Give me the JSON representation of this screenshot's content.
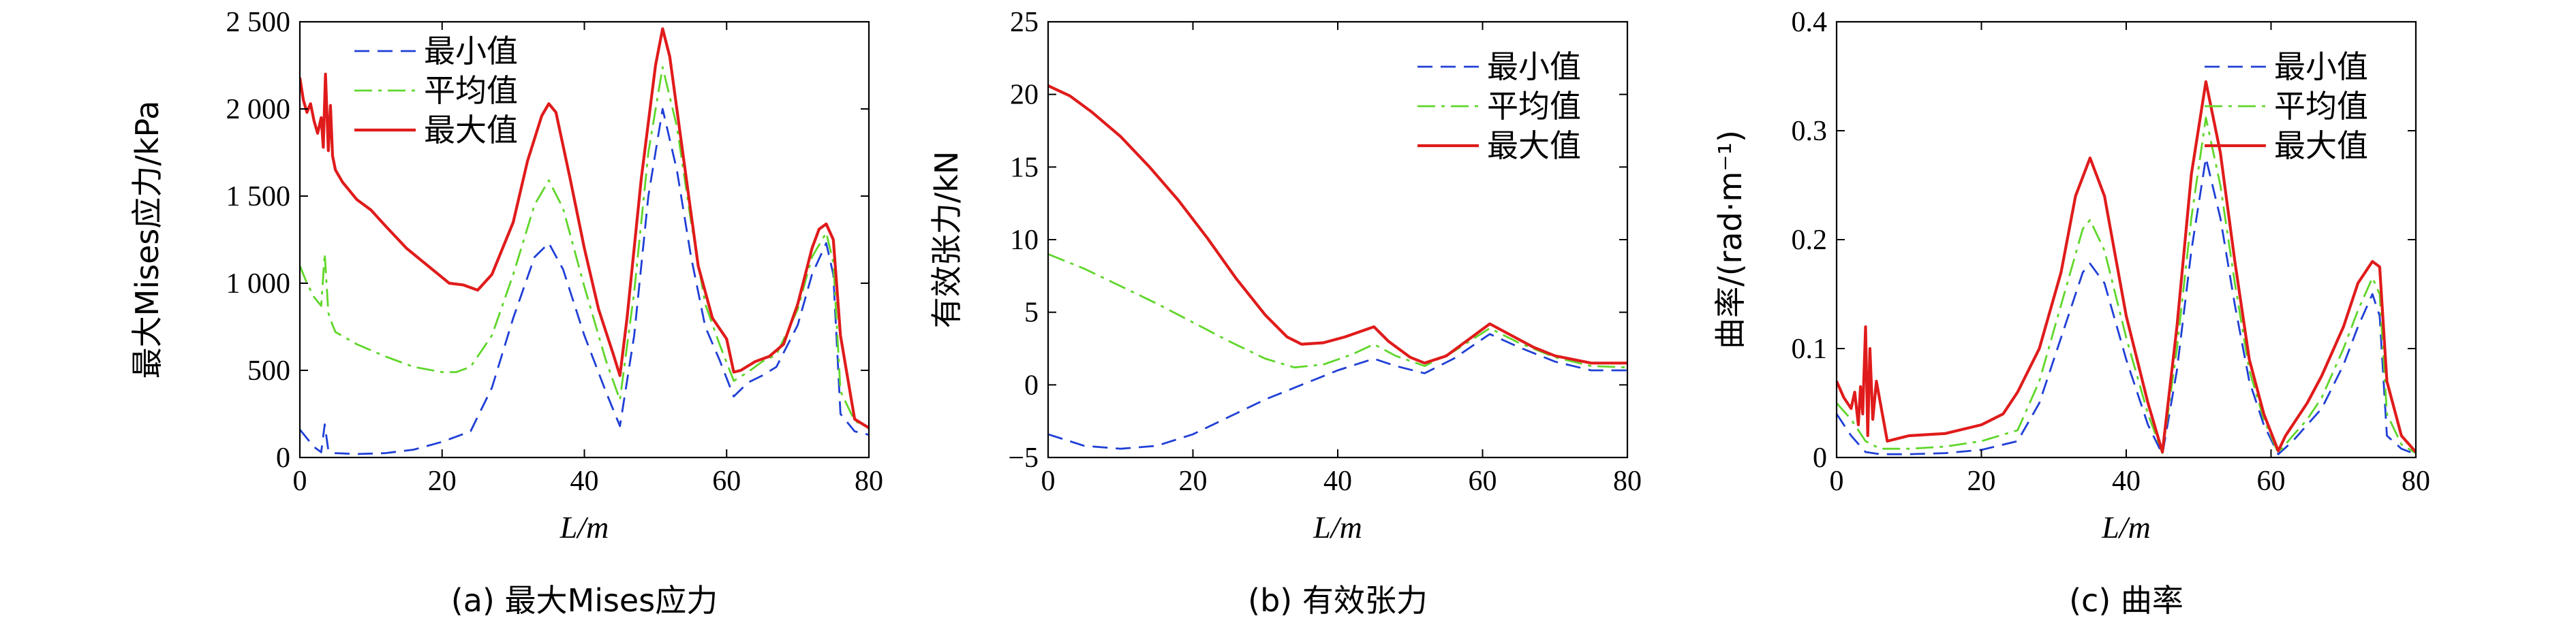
{
  "colors": {
    "min": "#1f3fd6",
    "avg": "#5fd62a",
    "max": "#e01b1b",
    "axis": "#000000"
  },
  "legend_labels": [
    "最小值",
    "平均值",
    "最大值"
  ],
  "chart_data": [
    {
      "type": "line",
      "caption": "(a) 最大Mises应力",
      "xlabel": "L/m",
      "ylabel": "最大Mises应力/kPa",
      "xlim": [
        0,
        80
      ],
      "ylim": [
        0,
        2500
      ],
      "xticks": [
        0,
        20,
        40,
        60,
        80
      ],
      "xtick_labels": [
        "0",
        "20",
        "40",
        "60",
        "80"
      ],
      "yticks": [
        0,
        500,
        1000,
        1500,
        2000,
        2500
      ],
      "ytick_labels": [
        "0",
        "500",
        "1 000",
        "1 500",
        "2 000",
        "2 500"
      ],
      "legend_position": "top-left",
      "series": [
        {
          "name": "最小值",
          "style": "dashed",
          "color": "#1f3fd6",
          "x": [
            0,
            1,
            2,
            3,
            3.5,
            4,
            4.5,
            5,
            8,
            12,
            16,
            20,
            24,
            27,
            30,
            33,
            35,
            37,
            40,
            43,
            45,
            47,
            49,
            51,
            53,
            55,
            57,
            59,
            61,
            63,
            65,
            67,
            70,
            72,
            74,
            75,
            76,
            78,
            80
          ],
          "y": [
            160,
            110,
            60,
            30,
            190,
            40,
            30,
            25,
            20,
            25,
            45,
            90,
            150,
            400,
            800,
            1150,
            1230,
            1080,
            700,
            380,
            180,
            700,
            1500,
            2000,
            1650,
            1150,
            750,
            560,
            350,
            430,
            470,
            520,
            760,
            1050,
            1230,
            1050,
            250,
            150,
            130
          ]
        },
        {
          "name": "平均值",
          "style": "dash-dot",
          "color": "#5fd62a",
          "x": [
            0,
            1,
            2,
            3,
            3.5,
            4,
            4.5,
            5,
            8,
            12,
            16,
            20,
            22,
            24,
            27,
            30,
            33,
            35,
            37,
            40,
            43,
            45,
            47,
            49,
            51,
            53,
            55,
            57,
            59,
            61,
            63,
            65,
            67,
            70,
            72,
            74,
            75,
            76,
            78,
            80
          ],
          "y": [
            1100,
            1000,
            920,
            870,
            1170,
            830,
            770,
            720,
            650,
            580,
            520,
            490,
            490,
            520,
            700,
            1050,
            1450,
            1590,
            1430,
            980,
            560,
            330,
            950,
            1750,
            2240,
            1900,
            1350,
            880,
            650,
            440,
            490,
            550,
            590,
            850,
            1150,
            1290,
            1120,
            380,
            210,
            170
          ]
        },
        {
          "name": "最大值",
          "style": "solid",
          "color": "#e01b1b",
          "x": [
            0,
            0.5,
            1,
            1.5,
            2,
            2.5,
            3,
            3.3,
            3.6,
            4,
            4.3,
            4.6,
            5,
            6,
            8,
            10,
            12,
            15,
            18,
            21,
            23,
            25,
            27,
            30,
            32,
            34,
            35,
            36,
            38,
            40,
            42,
            44,
            45,
            46,
            48,
            50,
            51,
            52,
            54,
            56,
            58,
            60,
            61,
            62,
            64,
            66,
            68,
            70,
            72,
            73,
            74,
            75,
            76,
            78,
            80
          ],
          "y": [
            2180,
            2050,
            1980,
            2030,
            1930,
            1860,
            1950,
            1780,
            2200,
            1760,
            2020,
            1730,
            1650,
            1580,
            1480,
            1420,
            1330,
            1200,
            1100,
            1000,
            990,
            960,
            1050,
            1350,
            1700,
            1960,
            2030,
            1980,
            1600,
            1200,
            850,
            600,
            470,
            800,
            1600,
            2250,
            2460,
            2300,
            1700,
            1100,
            800,
            680,
            490,
            500,
            550,
            580,
            650,
            880,
            1200,
            1310,
            1340,
            1250,
            700,
            220,
            170
          ]
        }
      ]
    },
    {
      "type": "line",
      "caption": "(b) 有效张力",
      "xlabel": "L/m",
      "ylabel": "有效张力/kN",
      "xlim": [
        0,
        80
      ],
      "ylim": [
        -5,
        25
      ],
      "xticks": [
        0,
        20,
        40,
        60,
        80
      ],
      "xtick_labels": [
        "0",
        "20",
        "40",
        "60",
        "80"
      ],
      "yticks": [
        -5,
        0,
        5,
        10,
        15,
        20,
        25
      ],
      "ytick_labels": [
        "−5",
        "0",
        "5",
        "10",
        "15",
        "20",
        "25"
      ],
      "legend_position": "top-right",
      "series": [
        {
          "name": "最小值",
          "style": "dashed",
          "color": "#1f3fd6",
          "x": [
            0,
            5,
            10,
            15,
            20,
            25,
            30,
            35,
            40,
            45,
            48,
            52,
            56,
            61,
            65,
            70,
            75,
            80
          ],
          "y": [
            -3.4,
            -4.2,
            -4.4,
            -4.2,
            -3.4,
            -2.2,
            -1.0,
            0.0,
            1.0,
            1.8,
            1.3,
            0.8,
            1.8,
            3.5,
            2.6,
            1.6,
            1.0,
            1.0
          ]
        },
        {
          "name": "平均值",
          "style": "dash-dot",
          "color": "#5fd62a",
          "x": [
            0,
            5,
            10,
            15,
            20,
            25,
            30,
            34,
            38,
            42,
            45,
            48,
            52,
            56,
            61,
            65,
            70,
            75,
            80
          ],
          "y": [
            9.0,
            8.0,
            6.8,
            5.6,
            4.3,
            3.0,
            1.8,
            1.2,
            1.4,
            2.1,
            2.8,
            2.0,
            1.3,
            2.3,
            3.9,
            2.9,
            1.9,
            1.3,
            1.2
          ]
        },
        {
          "name": "最大值",
          "style": "solid",
          "color": "#e01b1b",
          "x": [
            0,
            3,
            6,
            10,
            14,
            18,
            22,
            26,
            30,
            33,
            35,
            38,
            41,
            45,
            47,
            50,
            52,
            55,
            58,
            61,
            64,
            67,
            70,
            75,
            80
          ],
          "y": [
            20.6,
            19.9,
            18.8,
            17.1,
            15.0,
            12.7,
            10.1,
            7.3,
            4.8,
            3.3,
            2.8,
            2.9,
            3.3,
            4.0,
            3.0,
            1.9,
            1.5,
            2.0,
            3.1,
            4.2,
            3.4,
            2.6,
            2.0,
            1.5,
            1.5
          ]
        }
      ]
    },
    {
      "type": "line",
      "caption": "(c) 曲率",
      "xlabel": "L/m",
      "ylabel": "曲率/(rad·m⁻¹)",
      "xlim": [
        0,
        80
      ],
      "ylim": [
        0,
        0.4
      ],
      "xticks": [
        0,
        20,
        40,
        60,
        80
      ],
      "xtick_labels": [
        "0",
        "20",
        "40",
        "60",
        "80"
      ],
      "yticks": [
        0,
        0.1,
        0.2,
        0.3,
        0.4
      ],
      "ytick_labels": [
        "0",
        "0.1",
        "0.2",
        "0.3",
        "0.4"
      ],
      "legend_position": "top-right",
      "series": [
        {
          "name": "最小值",
          "style": "dashed",
          "color": "#1f3fd6",
          "x": [
            0,
            2,
            4,
            6,
            10,
            15,
            20,
            25,
            28,
            31,
            34,
            35,
            37,
            40,
            43,
            45,
            47,
            49,
            51,
            53,
            55,
            57,
            59,
            61,
            63,
            65,
            67,
            70,
            72,
            74,
            75,
            76,
            78,
            80
          ],
          "y": [
            0.04,
            0.02,
            0.005,
            0.003,
            0.003,
            0.004,
            0.007,
            0.015,
            0.05,
            0.11,
            0.17,
            0.178,
            0.16,
            0.09,
            0.03,
            0.003,
            0.08,
            0.19,
            0.275,
            0.22,
            0.14,
            0.07,
            0.03,
            0.003,
            0.015,
            0.03,
            0.045,
            0.085,
            0.12,
            0.15,
            0.13,
            0.02,
            0.008,
            0.003
          ]
        },
        {
          "name": "平均值",
          "style": "dash-dot",
          "color": "#5fd62a",
          "x": [
            0,
            2,
            4,
            6,
            10,
            15,
            20,
            25,
            28,
            31,
            34,
            35,
            37,
            40,
            43,
            45,
            47,
            49,
            51,
            53,
            55,
            57,
            59,
            61,
            63,
            65,
            67,
            70,
            72,
            74,
            75,
            76,
            78,
            80
          ],
          "y": [
            0.05,
            0.035,
            0.015,
            0.008,
            0.008,
            0.01,
            0.015,
            0.025,
            0.07,
            0.14,
            0.21,
            0.218,
            0.19,
            0.11,
            0.04,
            0.004,
            0.1,
            0.22,
            0.312,
            0.25,
            0.16,
            0.08,
            0.035,
            0.004,
            0.02,
            0.035,
            0.055,
            0.1,
            0.135,
            0.165,
            0.15,
            0.04,
            0.012,
            0.004
          ]
        },
        {
          "name": "最大值",
          "style": "solid",
          "color": "#e01b1b",
          "x": [
            0,
            1,
            2,
            2.5,
            3,
            3.3,
            3.6,
            4,
            4.3,
            4.6,
            5,
            5.5,
            7,
            10,
            15,
            20,
            23,
            25,
            28,
            31,
            33,
            35,
            37,
            40,
            43,
            45,
            47,
            49,
            51,
            53,
            55,
            57,
            59,
            61,
            62,
            63,
            65,
            67,
            70,
            72,
            74,
            75,
            76,
            78,
            80
          ],
          "y": [
            0.07,
            0.055,
            0.045,
            0.06,
            0.03,
            0.065,
            0.04,
            0.12,
            0.02,
            0.1,
            0.035,
            0.07,
            0.015,
            0.02,
            0.022,
            0.03,
            0.04,
            0.06,
            0.1,
            0.17,
            0.24,
            0.275,
            0.24,
            0.13,
            0.05,
            0.005,
            0.12,
            0.26,
            0.345,
            0.28,
            0.18,
            0.09,
            0.04,
            0.006,
            0.02,
            0.03,
            0.05,
            0.075,
            0.12,
            0.16,
            0.18,
            0.175,
            0.07,
            0.02,
            0.005
          ]
        }
      ]
    }
  ]
}
